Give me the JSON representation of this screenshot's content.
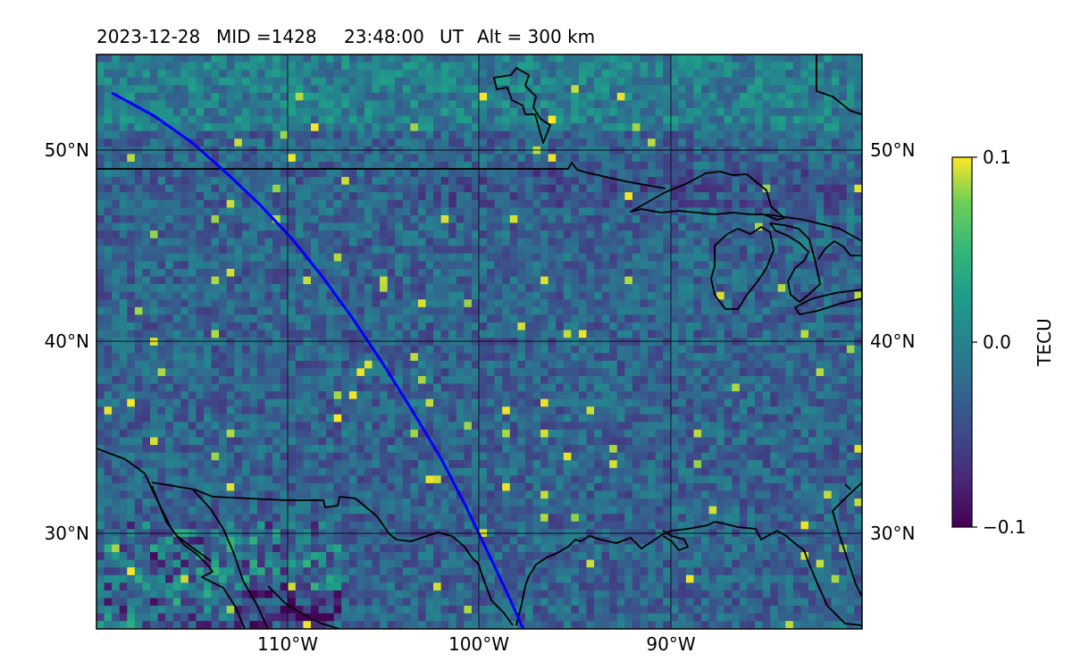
{
  "header": {
    "date": "2023-12-28",
    "mid": "MID =1428",
    "time": "23:48:00",
    "ut": "UT",
    "alt": "Alt = 300 km"
  },
  "map": {
    "extent": {
      "lon_min": -120,
      "lon_max": -80,
      "lat_min": 25,
      "lat_max": 55
    },
    "grid_lons": [
      -110,
      -100,
      -90
    ],
    "grid_lats": [
      30,
      40,
      50
    ],
    "lon_labels": [
      "110°W",
      "100°W",
      "90°W"
    ],
    "lat_labels": [
      "30°N",
      "40°N",
      "50°N"
    ],
    "colormap": "viridis",
    "grid": true,
    "track_color": "#0000ff",
    "track": [
      [
        -119.2,
        53.0
      ],
      [
        -117.0,
        51.8
      ],
      [
        -115.0,
        50.4
      ],
      [
        -113.2,
        48.8
      ],
      [
        -111.5,
        47.2
      ],
      [
        -109.8,
        45.4
      ],
      [
        -108.2,
        43.4
      ],
      [
        -106.6,
        41.2
      ],
      [
        -105.0,
        38.8
      ],
      [
        -103.5,
        36.4
      ],
      [
        -102.0,
        33.9
      ],
      [
        -100.7,
        31.4
      ],
      [
        -99.6,
        29.1
      ],
      [
        -98.6,
        27.0
      ],
      [
        -97.7,
        25.0
      ]
    ]
  },
  "colorbar": {
    "label": "TECU",
    "min": -0.1,
    "max": 0.1,
    "ticks": [
      "0.1",
      "0.0",
      "−0.1"
    ]
  }
}
